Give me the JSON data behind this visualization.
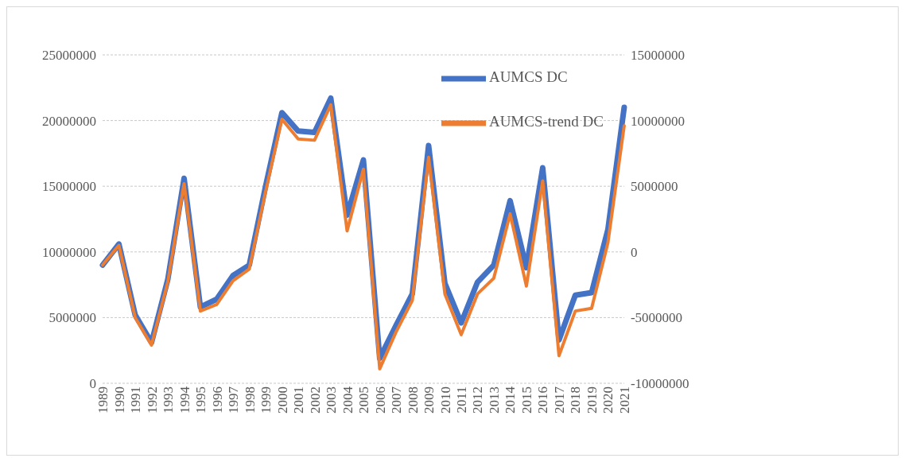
{
  "chart_data": {
    "type": "line",
    "categories": [
      "1989",
      "1990",
      "1991",
      "1992",
      "1993",
      "1994",
      "1995",
      "1996",
      "1997",
      "1998",
      "1999",
      "2000",
      "2001",
      "2002",
      "2003",
      "2004",
      "2005",
      "2006",
      "2007",
      "2008",
      "2009",
      "2010",
      "2011",
      "2012",
      "2013",
      "2014",
      "2015",
      "2016",
      "2017",
      "2018",
      "2019",
      "2020",
      "2021"
    ],
    "series": [
      {
        "name": "AUMCS DC",
        "color": "#4472c4",
        "values": [
          9000000,
          10600000,
          5200000,
          3100000,
          7900000,
          15600000,
          5800000,
          6400000,
          8200000,
          9000000,
          15000000,
          20600000,
          19200000,
          19100000,
          21700000,
          12800000,
          17000000,
          1900000,
          4400000,
          6800000,
          18100000,
          7600000,
          4600000,
          7700000,
          9000000,
          13900000,
          8800000,
          16400000,
          3300000,
          6700000,
          6900000,
          11700000,
          21000000
        ]
      },
      {
        "name": "AUMCS-trend DC",
        "color": "#ed7d31",
        "axis": "y2",
        "values": [
          -1000000,
          500000,
          -5000000,
          -7100000,
          -2300000,
          5200000,
          -4500000,
          -4000000,
          -2200000,
          -1300000,
          4600000,
          10100000,
          8600000,
          8500000,
          11200000,
          1600000,
          6300000,
          -8900000,
          -6100000,
          -3700000,
          7200000,
          -3200000,
          -6300000,
          -3200000,
          -2000000,
          2900000,
          -2600000,
          5400000,
          -7900000,
          -4500000,
          -4300000,
          700000,
          9600000
        ]
      }
    ],
    "ylim": [
      0,
      25000000
    ],
    "yticks": [
      0,
      5000000,
      10000000,
      15000000,
      20000000,
      25000000
    ],
    "y2lim": [
      -10000000,
      15000000
    ],
    "y2ticks": [
      -10000000,
      -5000000,
      0,
      5000000,
      10000000,
      15000000
    ],
    "grid": "y",
    "legend": "top right",
    "marker": "none",
    "line_style": "solid"
  }
}
